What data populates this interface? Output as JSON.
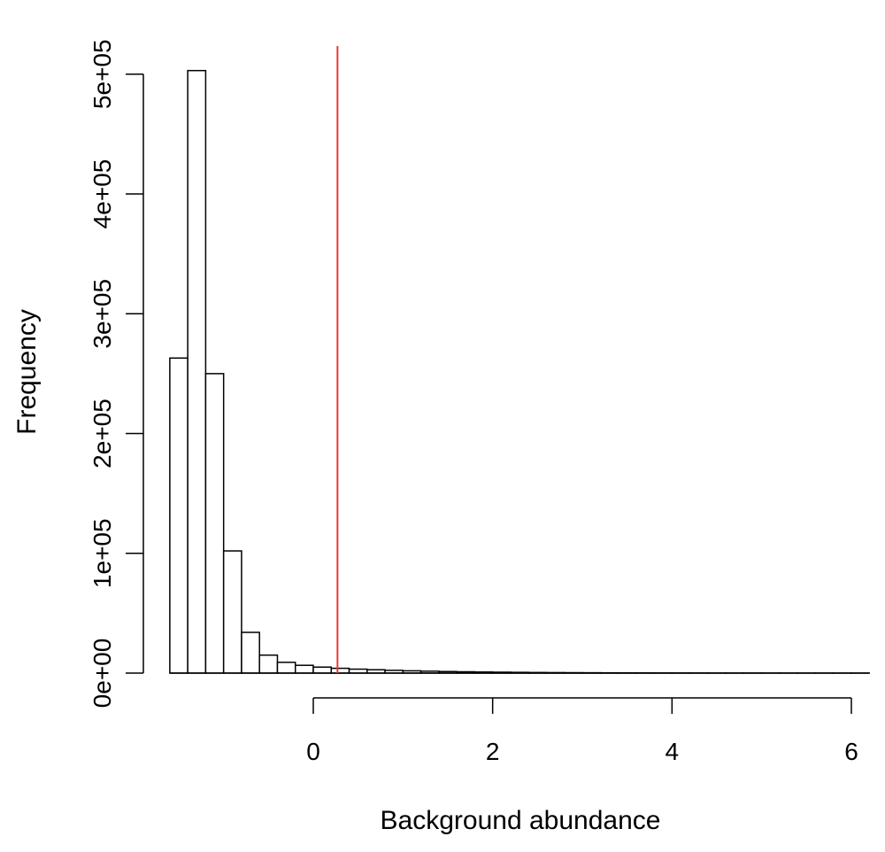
{
  "chart_data": {
    "type": "bar",
    "title": "",
    "xlabel": "Background abundance",
    "ylabel": "Frequency",
    "bin_width": 0.2,
    "bins": [
      {
        "x0": -1.6,
        "x1": -1.4,
        "value": 263000
      },
      {
        "x0": -1.4,
        "x1": -1.2,
        "value": 503000
      },
      {
        "x0": -1.2,
        "x1": -1.0,
        "value": 250000
      },
      {
        "x0": -1.0,
        "x1": -0.8,
        "value": 102000
      },
      {
        "x0": -0.8,
        "x1": -0.6,
        "value": 34000
      },
      {
        "x0": -0.6,
        "x1": -0.4,
        "value": 15000
      },
      {
        "x0": -0.4,
        "x1": -0.2,
        "value": 9000
      },
      {
        "x0": -0.2,
        "x1": 0.0,
        "value": 6500
      },
      {
        "x0": 0.0,
        "x1": 0.2,
        "value": 5000
      },
      {
        "x0": 0.2,
        "x1": 0.4,
        "value": 4000
      },
      {
        "x0": 0.4,
        "x1": 0.6,
        "value": 3300
      },
      {
        "x0": 0.6,
        "x1": 0.8,
        "value": 2800
      },
      {
        "x0": 0.8,
        "x1": 1.0,
        "value": 2300
      },
      {
        "x0": 1.0,
        "x1": 1.2,
        "value": 1900
      },
      {
        "x0": 1.2,
        "x1": 1.4,
        "value": 1600
      },
      {
        "x0": 1.4,
        "x1": 1.6,
        "value": 1300
      },
      {
        "x0": 1.6,
        "x1": 1.8,
        "value": 1100
      },
      {
        "x0": 1.8,
        "x1": 2.0,
        "value": 900
      },
      {
        "x0": 2.0,
        "x1": 2.2,
        "value": 750
      },
      {
        "x0": 2.2,
        "x1": 2.4,
        "value": 620
      },
      {
        "x0": 2.4,
        "x1": 2.6,
        "value": 500
      },
      {
        "x0": 2.6,
        "x1": 2.8,
        "value": 420
      },
      {
        "x0": 2.8,
        "x1": 3.0,
        "value": 350
      },
      {
        "x0": 3.0,
        "x1": 3.2,
        "value": 290
      },
      {
        "x0": 3.2,
        "x1": 3.4,
        "value": 240
      },
      {
        "x0": 3.4,
        "x1": 3.6,
        "value": 200
      },
      {
        "x0": 3.6,
        "x1": 3.8,
        "value": 160
      },
      {
        "x0": 3.8,
        "x1": 4.0,
        "value": 130
      },
      {
        "x0": 4.0,
        "x1": 4.2,
        "value": 110
      },
      {
        "x0": 4.2,
        "x1": 4.4,
        "value": 90
      },
      {
        "x0": 4.4,
        "x1": 4.6,
        "value": 70
      },
      {
        "x0": 4.6,
        "x1": 4.8,
        "value": 60
      },
      {
        "x0": 4.8,
        "x1": 5.0,
        "value": 50
      },
      {
        "x0": 5.0,
        "x1": 5.2,
        "value": 40
      },
      {
        "x0": 5.2,
        "x1": 5.4,
        "value": 30
      },
      {
        "x0": 5.4,
        "x1": 5.6,
        "value": 25
      },
      {
        "x0": 5.6,
        "x1": 5.8,
        "value": 20
      },
      {
        "x0": 5.8,
        "x1": 6.0,
        "value": 15
      },
      {
        "x0": 6.0,
        "x1": 6.2,
        "value": 10
      }
    ],
    "xticks": [
      0,
      2,
      4,
      6
    ],
    "xtick_labels": [
      "0",
      "2",
      "4",
      "6"
    ],
    "yticks": [
      0,
      100000,
      200000,
      300000,
      400000,
      500000
    ],
    "ytick_labels": [
      "0e+00",
      "1e+05",
      "2e+05",
      "3e+05",
      "4e+05",
      "5e+05"
    ],
    "xlim": [
      -1.6,
      6.2
    ],
    "ylim": [
      0,
      525000
    ],
    "reference_line": {
      "x": 0.27,
      "color": "#e8392e"
    },
    "bar_fill": "#ffffff",
    "bar_stroke": "#000000",
    "grid": false,
    "legend": "none"
  }
}
